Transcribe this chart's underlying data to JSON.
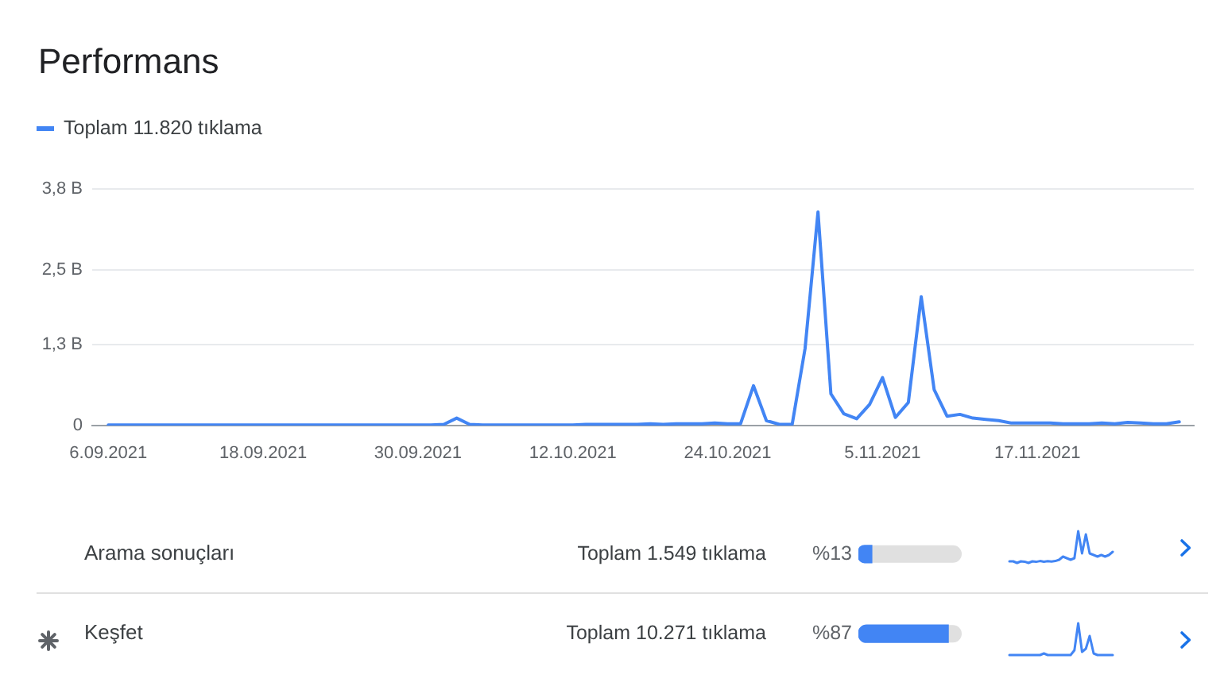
{
  "chart_data": [
    {
      "type": "line",
      "title": "Performans",
      "x": [
        "2021-09-06",
        "2021-09-07",
        "2021-09-08",
        "2021-09-09",
        "2021-09-10",
        "2021-09-11",
        "2021-09-12",
        "2021-09-13",
        "2021-09-14",
        "2021-09-15",
        "2021-09-16",
        "2021-09-17",
        "2021-09-18",
        "2021-09-19",
        "2021-09-20",
        "2021-09-21",
        "2021-09-22",
        "2021-09-23",
        "2021-09-24",
        "2021-09-25",
        "2021-09-26",
        "2021-09-27",
        "2021-09-28",
        "2021-09-29",
        "2021-09-30",
        "2021-10-01",
        "2021-10-02",
        "2021-10-03",
        "2021-10-04",
        "2021-10-05",
        "2021-10-06",
        "2021-10-07",
        "2021-10-08",
        "2021-10-09",
        "2021-10-10",
        "2021-10-11",
        "2021-10-12",
        "2021-10-13",
        "2021-10-14",
        "2021-10-15",
        "2021-10-16",
        "2021-10-17",
        "2021-10-18",
        "2021-10-19",
        "2021-10-20",
        "2021-10-21",
        "2021-10-22",
        "2021-10-23",
        "2021-10-24",
        "2021-10-25",
        "2021-10-26",
        "2021-10-27",
        "2021-10-28",
        "2021-10-29",
        "2021-10-30",
        "2021-10-31",
        "2021-11-01",
        "2021-11-02",
        "2021-11-03",
        "2021-11-04",
        "2021-11-05",
        "2021-11-06",
        "2021-11-07",
        "2021-11-08",
        "2021-11-09",
        "2021-11-10",
        "2021-11-11",
        "2021-11-12",
        "2021-11-13",
        "2021-11-14",
        "2021-11-15",
        "2021-11-16",
        "2021-11-17",
        "2021-11-18",
        "2021-11-19",
        "2021-11-20",
        "2021-11-21",
        "2021-11-22",
        "2021-11-23",
        "2021-11-24",
        "2021-11-25",
        "2021-11-26",
        "2021-11-27",
        "2021-11-28"
      ],
      "series": [
        {
          "name": "Toplam 11.820 tıklama",
          "color": "#4285f4",
          "values": [
            0.01,
            0.01,
            0.01,
            0.01,
            0.01,
            0.01,
            0.01,
            0.01,
            0.01,
            0.01,
            0.01,
            0.01,
            0.01,
            0.01,
            0.01,
            0.01,
            0.01,
            0.01,
            0.01,
            0.01,
            0.01,
            0.01,
            0.01,
            0.01,
            0.01,
            0.01,
            0.02,
            0.12,
            0.02,
            0.01,
            0.01,
            0.01,
            0.01,
            0.01,
            0.01,
            0.01,
            0.01,
            0.02,
            0.02,
            0.02,
            0.02,
            0.02,
            0.03,
            0.02,
            0.03,
            0.03,
            0.03,
            0.04,
            0.03,
            0.03,
            0.64,
            0.08,
            0.02,
            0.02,
            1.24,
            3.43,
            0.51,
            0.19,
            0.11,
            0.34,
            0.77,
            0.13,
            0.37,
            2.07,
            0.58,
            0.15,
            0.18,
            0.12,
            0.1,
            0.08,
            0.04,
            0.04,
            0.04,
            0.04,
            0.03,
            0.03,
            0.03,
            0.04,
            0.03,
            0.05,
            0.04,
            0.03,
            0.03,
            0.06
          ]
        }
      ],
      "xlim": [
        "2021-09-04T18:00",
        "2021-11-29T03:00"
      ],
      "xticks": [
        {
          "value": "2021-09-06",
          "label": "6.09.2021"
        },
        {
          "value": "2021-09-18",
          "label": "18.09.2021"
        },
        {
          "value": "2021-09-30",
          "label": "30.09.2021"
        },
        {
          "value": "2021-10-12",
          "label": "12.10.2021"
        },
        {
          "value": "2021-10-24",
          "label": "24.10.2021"
        },
        {
          "value": "2021-11-05",
          "label": "5.11.2021"
        },
        {
          "value": "2021-11-17",
          "label": "17.11.2021"
        }
      ],
      "ylim": [
        0,
        3.8
      ],
      "yticks": [
        0,
        {
          "value": 1.3,
          "label": "1,3 B"
        },
        {
          "value": 2.5,
          "label": "2,5 B"
        },
        {
          "value": 3.8,
          "label": "3,8 B"
        }
      ],
      "grid": "y",
      "legend": "top left"
    },
    {
      "type": "bar",
      "orientation": "horizontal",
      "categories": [
        "Arama sonuçları",
        "Keşfet"
      ],
      "values": [
        13,
        87
      ],
      "value_labels": [
        "%13",
        "%87"
      ],
      "color": "#4285f4",
      "xlim": [
        0,
        100
      ],
      "tick_labels": "y",
      "annotations": [
        "Toplam 1.549 tıklama",
        "Toplam 10.271 tıklama"
      ]
    }
  ]
}
